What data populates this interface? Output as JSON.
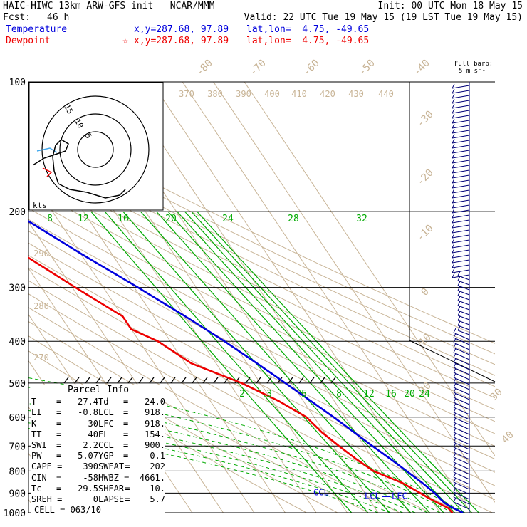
{
  "header": {
    "title": "HAIC-HIWC 13km ARW-GFS init   NCAR/MMM",
    "init": "Init: 00 UTC Mon 18 May 15",
    "fcst_label": "Fcst:",
    "fcst_value": "46 h",
    "valid": "Valid: 22 UTC Tue 19 May 15 (19 LST Tue 19 May 15)",
    "temperature_label": "Temperature",
    "temperature_xy": "x,y=287.68, 97.89",
    "temperature_latlon": "lat,lon=  4.75, -49.65",
    "dewpoint_label": "Dewpoint",
    "dewpoint_marker": "☆",
    "dewpoint_xy": "x,y=287.68, 97.89",
    "dewpoint_latlon": "lat,lon=  4.75, -49.65"
  },
  "colors": {
    "temperature": "#0000dd",
    "dewpoint": "#ee0000",
    "isotherm": "#c8b496",
    "mixing_ratio": "#00aa00",
    "isobar": "#000000",
    "wind_barb": "#000077"
  },
  "chart_data": {
    "type": "line",
    "diagram": "skew-T log-p",
    "y_axis": {
      "pressure_hpa_ticks": [
        100,
        200,
        300,
        400,
        500,
        600,
        700,
        800,
        900,
        1000
      ],
      "range": [
        1000,
        100
      ]
    },
    "isotherm_labels": [
      "-80",
      "-70",
      "-60",
      "-50",
      "-40",
      "-30",
      "-20",
      "-10",
      "0",
      "10",
      "20",
      "30",
      "40"
    ],
    "theta_labels": [
      "370",
      "380",
      "390",
      "400",
      "410",
      "420",
      "430",
      "440",
      "290",
      "280",
      "270"
    ],
    "mixing_ratio_labels_top": [
      "8",
      "12",
      "16",
      "20",
      "24",
      "28",
      "32"
    ],
    "mixing_ratio_labels_mid": [
      "2",
      "3",
      "5",
      "8",
      "12",
      "16",
      "20",
      "24"
    ],
    "series": [
      {
        "name": "Temperature",
        "points": [
          [
            1000,
            27.4
          ],
          [
            975,
            25.2
          ],
          [
            950,
            23.6
          ],
          [
            925,
            23.0
          ],
          [
            900,
            22.5
          ],
          [
            850,
            20.6
          ],
          [
            800,
            18.2
          ],
          [
            750,
            15.6
          ],
          [
            700,
            12.6
          ],
          [
            650,
            9.6
          ],
          [
            600,
            6.3
          ],
          [
            550,
            2.4
          ],
          [
            500,
            -1.9
          ],
          [
            450,
            -6.8
          ],
          [
            400,
            -12.5
          ],
          [
            350,
            -19.8
          ],
          [
            300,
            -28.8
          ],
          [
            250,
            -40.0
          ],
          [
            200,
            -52.8
          ],
          [
            175,
            -60.8
          ],
          [
            154,
            -68.5
          ],
          [
            140,
            -70.4
          ],
          [
            125,
            -70.6
          ],
          [
            115,
            -68.8
          ],
          [
            100,
            -65.0
          ]
        ]
      },
      {
        "name": "Dewpoint",
        "points": [
          [
            1000,
            24.0
          ],
          [
            975,
            23.6
          ],
          [
            950,
            21.5
          ],
          [
            925,
            19.5
          ],
          [
            900,
            17.8
          ],
          [
            850,
            14.0
          ],
          [
            800,
            7.5
          ],
          [
            750,
            4.5
          ],
          [
            700,
            1.8
          ],
          [
            650,
            -0.8
          ],
          [
            600,
            -2.5
          ],
          [
            550,
            -8.0
          ],
          [
            500,
            -16.0
          ],
          [
            450,
            -28.0
          ],
          [
            400,
            -34.0
          ],
          [
            375,
            -40.0
          ],
          [
            350,
            -40.0
          ],
          [
            300,
            -49.0
          ],
          [
            250,
            -59.0
          ],
          [
            220,
            -67.0
          ],
          [
            200,
            -70.0
          ],
          [
            180,
            -74.0
          ],
          [
            160,
            -80.0
          ],
          [
            140,
            -86.0
          ],
          [
            120,
            -87.0
          ],
          [
            100,
            -86.0
          ]
        ]
      }
    ],
    "level_labels": [
      "EL",
      "CCL",
      "LCL",
      "LFC"
    ],
    "hodograph": {
      "ring_labels": [
        "15",
        "10",
        "5"
      ],
      "units": "kts"
    },
    "wind_barb_legend": {
      "label": "Full barb:",
      "value": "5 m s⁻¹"
    }
  },
  "parcel_info": {
    "title": "Parcel Info",
    "rows": [
      [
        [
          "T",
          "27.4"
        ],
        [
          "Td",
          "24.0"
        ]
      ],
      [
        [
          "LI",
          "-0.8"
        ],
        [
          "LCL",
          "918."
        ]
      ],
      [
        [
          "K",
          "30"
        ],
        [
          "LFC",
          "918."
        ]
      ],
      [
        [
          "TT",
          "40"
        ],
        [
          "EL",
          "154."
        ]
      ],
      [
        [
          "SWI",
          "2.2"
        ],
        [
          "CCL",
          "900."
        ]
      ],
      [
        [
          "PW",
          "5.07"
        ],
        [
          "YGP",
          "0.1"
        ]
      ],
      [
        [
          "CAPE",
          "390"
        ],
        [
          "SWEAT",
          "202"
        ]
      ],
      [
        [
          "CIN",
          "-58"
        ],
        [
          "HWBZ",
          "4661."
        ]
      ],
      [
        [
          "Tc",
          "29.5"
        ],
        [
          "SHEAR",
          "10."
        ]
      ],
      [
        [
          "SREH",
          "0"
        ],
        [
          "LAPSE",
          "5.7"
        ]
      ]
    ],
    "cell": "CELL = 063/10"
  }
}
